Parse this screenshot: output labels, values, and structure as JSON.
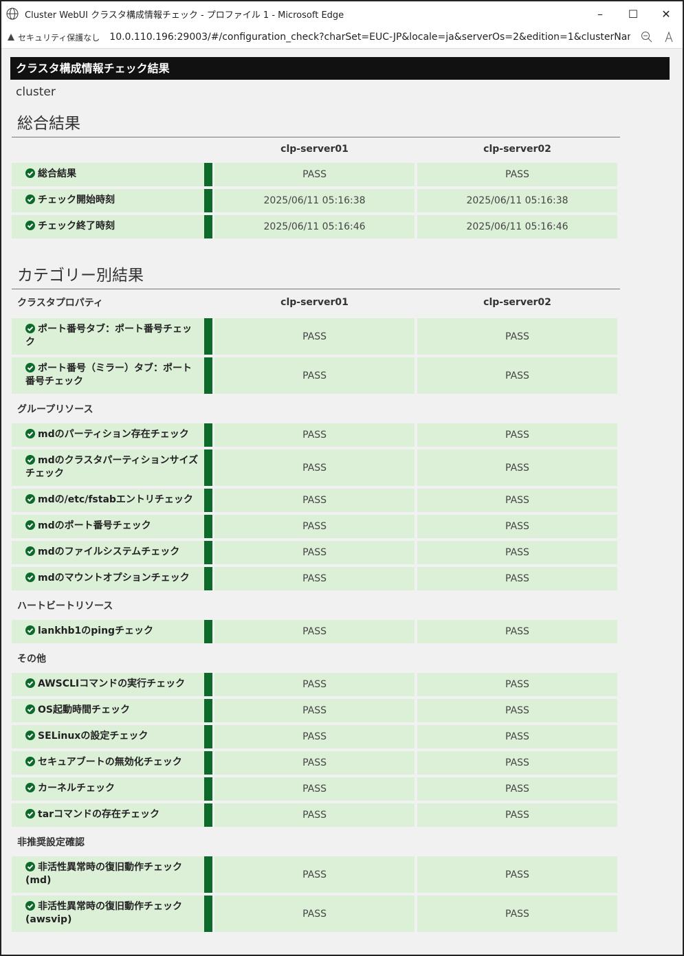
{
  "window": {
    "title": "Cluster WebUI クラスタ構成情報チェック - プロファイル 1 - Microsoft Edge",
    "security": "セキュリティ保護なし",
    "url": "10.0.110.196:29003/#/configuration_check?charSet=EUC-JP&locale=ja&serverOs=2&edition=1&clusterName=cl..."
  },
  "page": {
    "title": "クラスタ構成情報チェック結果",
    "cluster": "cluster"
  },
  "summary": {
    "heading": "総合結果",
    "columns": [
      "clp-server01",
      "clp-server02"
    ],
    "rows": [
      {
        "label": "総合結果",
        "values": [
          "PASS",
          "PASS"
        ]
      },
      {
        "label": "チェック開始時刻",
        "values": [
          "2025/06/11 05:16:38",
          "2025/06/11 05:16:38"
        ]
      },
      {
        "label": "チェック終了時刻",
        "values": [
          "2025/06/11 05:16:46",
          "2025/06/11 05:16:46"
        ]
      }
    ]
  },
  "categories": {
    "heading": "カテゴリー別結果",
    "columns": [
      "clp-server01",
      "clp-server02"
    ],
    "groups": [
      {
        "name": "クラスタプロパティ",
        "rows": [
          {
            "label": "ポート番号タブ：ポート番号チェック",
            "values": [
              "PASS",
              "PASS"
            ]
          },
          {
            "label": "ポート番号（ミラー）タブ：ポート番号チェック",
            "values": [
              "PASS",
              "PASS"
            ]
          }
        ]
      },
      {
        "name": "グループリソース",
        "rows": [
          {
            "label": "mdのパーティション存在チェック",
            "values": [
              "PASS",
              "PASS"
            ]
          },
          {
            "label": "mdのクラスタパーティションサイズチェック",
            "values": [
              "PASS",
              "PASS"
            ]
          },
          {
            "label": "mdの/etc/fstabエントリチェック",
            "values": [
              "PASS",
              "PASS"
            ]
          },
          {
            "label": "mdのポート番号チェック",
            "values": [
              "PASS",
              "PASS"
            ]
          },
          {
            "label": "mdのファイルシステムチェック",
            "values": [
              "PASS",
              "PASS"
            ]
          },
          {
            "label": "mdのマウントオプションチェック",
            "values": [
              "PASS",
              "PASS"
            ]
          }
        ]
      },
      {
        "name": "ハートビートリソース",
        "rows": [
          {
            "label": "lankhb1のpingチェック",
            "values": [
              "PASS",
              "PASS"
            ]
          }
        ]
      },
      {
        "name": "その他",
        "rows": [
          {
            "label": "AWSCLIコマンドの実行チェック",
            "values": [
              "PASS",
              "PASS"
            ]
          },
          {
            "label": "OS起動時間チェック",
            "values": [
              "PASS",
              "PASS"
            ]
          },
          {
            "label": "SELinuxの設定チェック",
            "values": [
              "PASS",
              "PASS"
            ]
          },
          {
            "label": "セキュアブートの無効化チェック",
            "values": [
              "PASS",
              "PASS"
            ]
          },
          {
            "label": "カーネルチェック",
            "values": [
              "PASS",
              "PASS"
            ]
          },
          {
            "label": "tarコマンドの存在チェック",
            "values": [
              "PASS",
              "PASS"
            ]
          }
        ]
      },
      {
        "name": "非推奨設定確認",
        "rows": [
          {
            "label": "非活性異常時の復旧動作チェック(md)",
            "values": [
              "PASS",
              "PASS"
            ]
          },
          {
            "label": "非活性異常時の復旧動作チェック(awsvip)",
            "values": [
              "PASS",
              "PASS"
            ]
          }
        ]
      }
    ]
  }
}
